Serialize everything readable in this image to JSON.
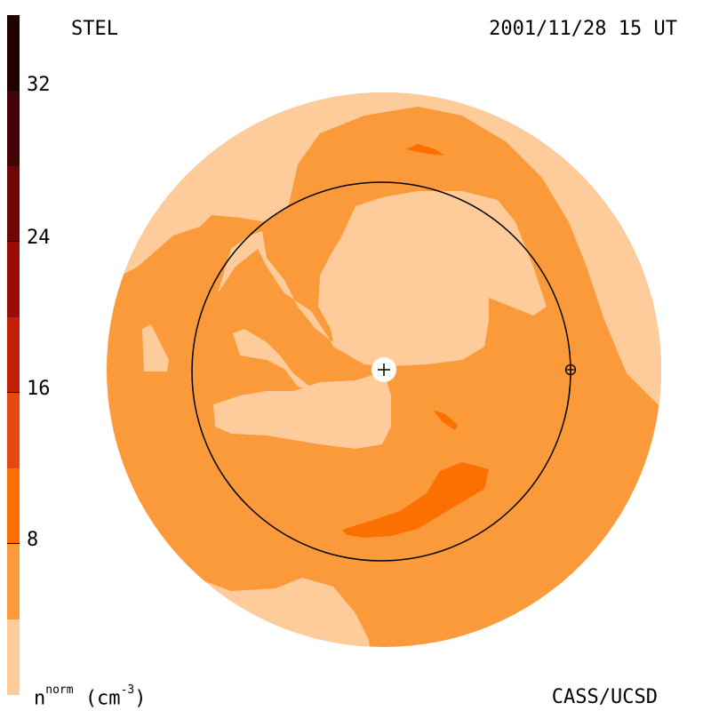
{
  "header": {
    "instrument": "STEL",
    "datetime": "2001/11/28 15 UT"
  },
  "footer": {
    "credit": "CASS/UCSD"
  },
  "colorbar": {
    "quantity": "n",
    "quantity_sup": "norm",
    "unit": "(cm",
    "unit_sup": "-3",
    "unit_close": ")",
    "tick_labels": [
      "8",
      "16",
      "24",
      "32"
    ],
    "levels": [
      {
        "max": 4,
        "color": "#fdcc9a"
      },
      {
        "max": 8,
        "color": "#fb9a3a"
      },
      {
        "max": 12,
        "color": "#fb7000"
      },
      {
        "max": 16,
        "color": "#e34a10"
      },
      {
        "max": 20,
        "color": "#c3200a"
      },
      {
        "max": 24,
        "color": "#9a0c08"
      },
      {
        "max": 28,
        "color": "#6e0606"
      },
      {
        "max": 32,
        "color": "#420404"
      },
      {
        "max": 36,
        "color": "#200000"
      }
    ]
  },
  "map": {
    "sun_marker": "+",
    "earth_marker": "⊕"
  }
}
